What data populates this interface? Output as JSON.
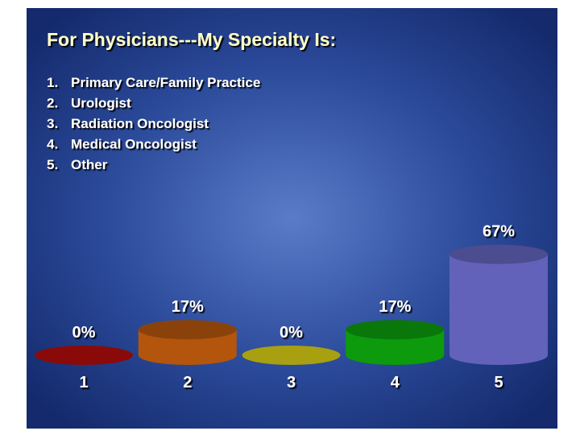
{
  "chart_data": {
    "type": "cylinder-bar",
    "title": "For Physicians---My Specialty Is:",
    "options": [
      {
        "number": "1.",
        "text": "Primary Care/Family Practice"
      },
      {
        "number": "2.",
        "text": "Urologist"
      },
      {
        "number": "3.",
        "text": "Radiation Oncologist"
      },
      {
        "number": "4.",
        "text": "Medical Oncologist"
      },
      {
        "number": "5.",
        "text": "Other"
      }
    ],
    "categories": [
      "1",
      "2",
      "3",
      "4",
      "5"
    ],
    "values": [
      0,
      17,
      0,
      17,
      67
    ],
    "value_labels": [
      "0%",
      "17%",
      "0%",
      "17%",
      "67%"
    ],
    "colors": [
      "#8a0a0a",
      "#e06a10",
      "#a8a010",
      "#10c010",
      "#7a7ae8"
    ]
  }
}
